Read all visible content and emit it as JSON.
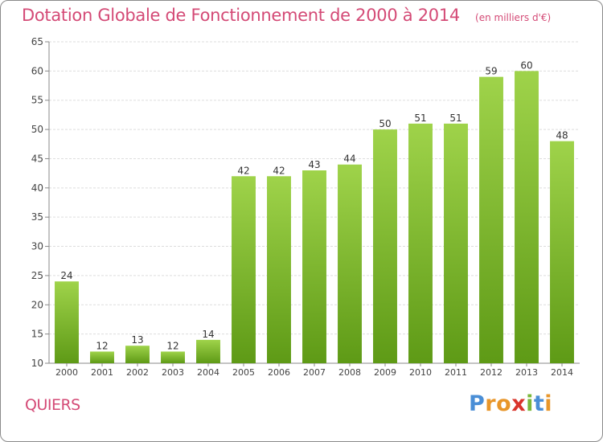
{
  "header": {
    "title": "Dotation Globale de Fonctionnement de 2000 à 2014",
    "subtitle": "(en milliers d'€)"
  },
  "footer": {
    "town": "QUIERS",
    "brand": [
      "P",
      "r",
      "o",
      "x",
      "i",
      "t",
      "i"
    ]
  },
  "colors": {
    "title": "#d44a76",
    "bar_light": "#9fd34a",
    "bar_dark": "#5e9a16",
    "grid": "#dddddd",
    "axis_text": "#444444",
    "brand": [
      "#4a8ed6",
      "#e8962a",
      "#e8962a",
      "#d9342b",
      "#7ab83a",
      "#4a8ed6",
      "#e8962a"
    ]
  },
  "chart_data": {
    "type": "bar",
    "categories": [
      "2000",
      "2001",
      "2002",
      "2003",
      "2004",
      "2005",
      "2006",
      "2007",
      "2008",
      "2009",
      "2010",
      "2011",
      "2012",
      "2013",
      "2014"
    ],
    "values": [
      24,
      12,
      13,
      12,
      14,
      42,
      42,
      43,
      44,
      50,
      51,
      51,
      59,
      60,
      48
    ],
    "title": "Dotation Globale de Fonctionnement de 2000 à 2014",
    "subtitle": "(en milliers d'€)",
    "xlabel": "",
    "ylabel": "",
    "ylim": [
      10,
      65
    ],
    "yticks": [
      10,
      15,
      20,
      25,
      30,
      35,
      40,
      45,
      50,
      55,
      60,
      65
    ],
    "grid": true,
    "data_labels": true
  }
}
